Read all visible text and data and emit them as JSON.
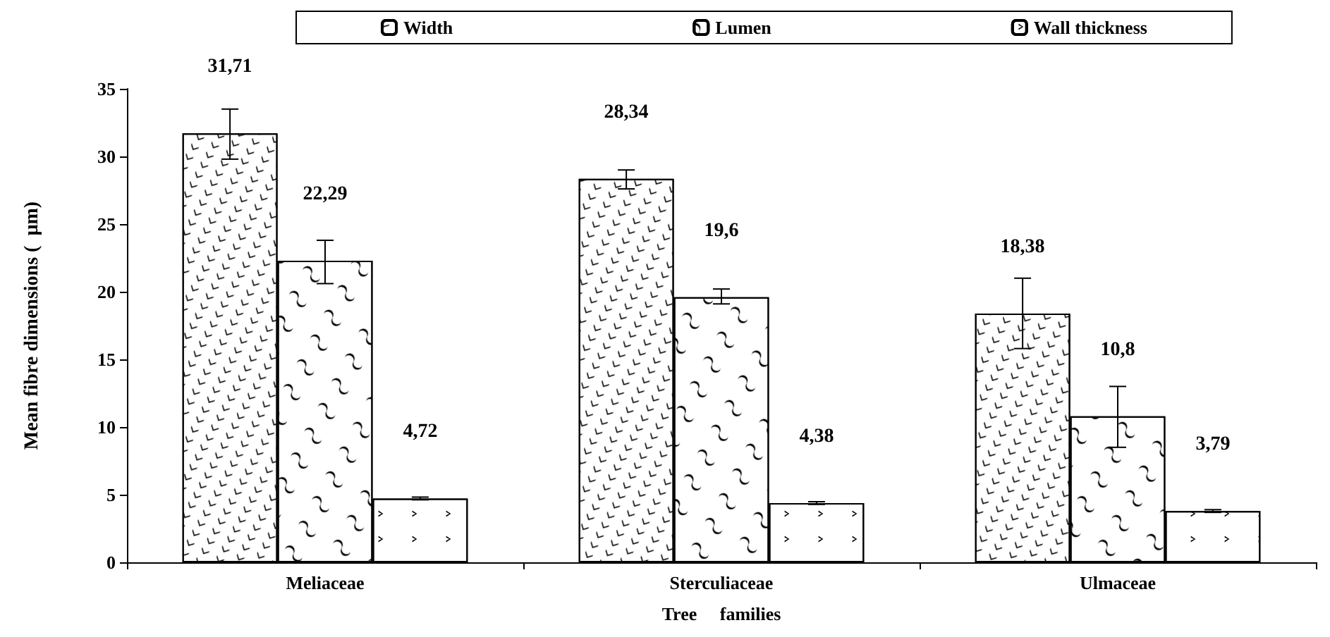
{
  "chart_data": {
    "type": "bar",
    "xlabel": "Tree     families",
    "ylabel": "Mean fibre dimensions (  µm)",
    "categories": [
      "Meliaceae",
      "Sterculiaceae",
      "Ulmaceae"
    ],
    "series": [
      {
        "name": "Width",
        "color": "#ffffff",
        "values": [
          31.71,
          28.34,
          18.38
        ],
        "value_labels": [
          "31,71",
          "28,34",
          "18,38"
        ],
        "errors": [
          [
            29.8,
            33.5
          ],
          [
            27.6,
            29.0
          ],
          [
            15.8,
            21.0
          ]
        ]
      },
      {
        "name": "Lumen",
        "color": "#ffffff",
        "values": [
          22.29,
          19.6,
          10.8
        ],
        "value_labels": [
          "22,29",
          "19,6",
          "10,8"
        ],
        "errors": [
          [
            20.6,
            23.8
          ],
          [
            19.1,
            20.2
          ],
          [
            8.5,
            13.0
          ]
        ]
      },
      {
        "name": "Wall thickness",
        "color": "#ffffff",
        "values": [
          4.72,
          4.38,
          3.79
        ],
        "value_labels": [
          "4,72",
          "4,38",
          "3,79"
        ],
        "errors": [
          0.1,
          0.1,
          0.1
        ]
      }
    ],
    "ylim": [
      0,
      35
    ],
    "yticks": [
      0,
      5,
      10,
      15,
      20,
      25,
      30,
      35
    ],
    "grid": false,
    "legend": "top"
  }
}
